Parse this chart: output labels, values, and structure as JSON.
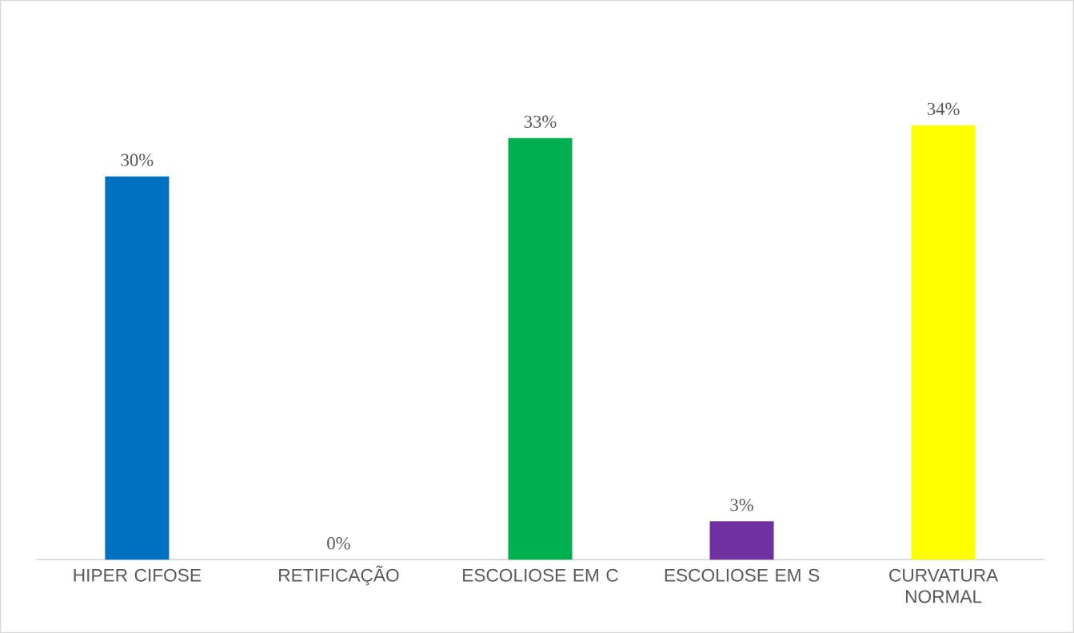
{
  "chart_data": {
    "type": "bar",
    "categories": [
      "HIPER CIFOSE",
      "RETIFICAÇÃO",
      "ESCOLIOSE EM C",
      "ESCOLIOSE EM S",
      "CURVATURA NORMAL"
    ],
    "values": [
      30,
      0,
      33,
      3,
      34
    ],
    "value_labels": [
      "30%",
      "0%",
      "33%",
      "3%",
      "34%"
    ],
    "colors": [
      "#0070c0",
      null,
      "#00b050",
      "#7030a0",
      "#ffff00"
    ]
  }
}
